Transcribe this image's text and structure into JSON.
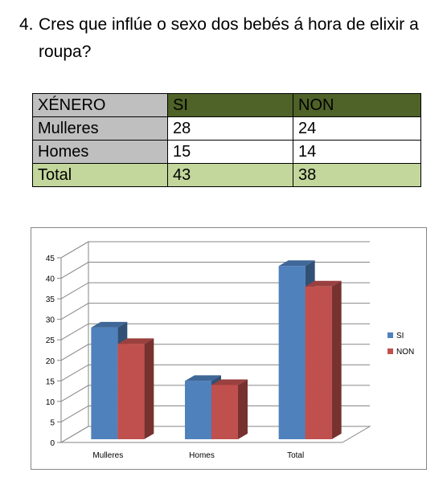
{
  "question": {
    "number": "4.",
    "text": "Cres que inflúe o sexo dos bebés á hora de elixir a roupa?"
  },
  "table": {
    "headers": [
      "XÉNERO",
      "SI",
      "NON"
    ],
    "rows": [
      [
        "Mulleres",
        "28",
        "24"
      ],
      [
        "Homes",
        "15",
        "14"
      ],
      [
        "Total",
        "43",
        "38"
      ]
    ]
  },
  "chart_data": {
    "type": "bar",
    "title": "",
    "categories": [
      "Mulleres",
      "Homes",
      "Total"
    ],
    "series": [
      {
        "name": "SI",
        "values": [
          28,
          15,
          43
        ],
        "color": "#4f81bd"
      },
      {
        "name": "NON",
        "values": [
          24,
          14,
          38
        ],
        "color": "#c0504d"
      }
    ],
    "ylim": [
      0,
      45
    ],
    "yticks": [
      0,
      5,
      10,
      15,
      20,
      25,
      30,
      35,
      40,
      45
    ],
    "grid": true,
    "three_d": true,
    "legend": "right"
  }
}
